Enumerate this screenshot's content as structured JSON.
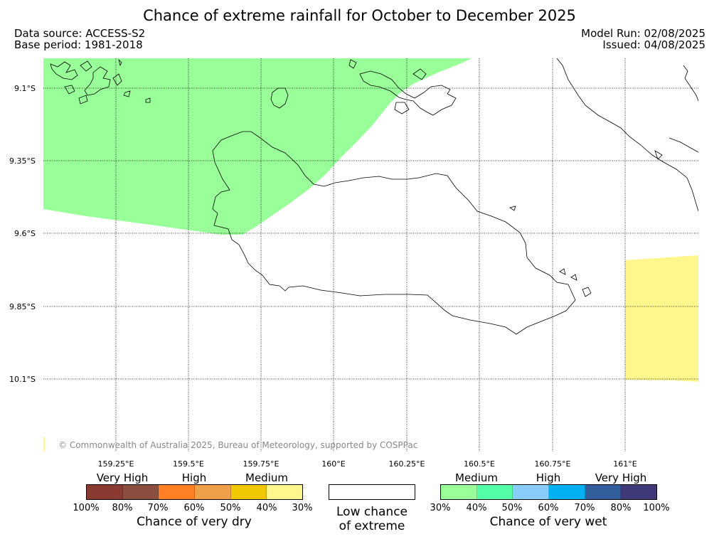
{
  "header": {
    "title": "Chance of extreme rainfall for October to December 2025",
    "data_source": "Data source: ACCESS-S2",
    "base_period": "Base period: 1981-2018",
    "model_run": "Model Run: 02/08/2025",
    "issued": "Issued: 04/08/2025"
  },
  "map": {
    "lat_labels": [
      "9.1°S",
      "9.35°S",
      "9.6°S",
      "9.85°S",
      "10.1°S"
    ],
    "lon_labels": [
      "159.25°E",
      "159.5°E",
      "159.75°E",
      "160°E",
      "160.25°E",
      "160.5°E",
      "160.75°E",
      "161°E"
    ],
    "land_stroke": "#000000",
    "gridline_color": "#000000",
    "regions": [
      {
        "category": "Medium chance of very wet",
        "color": "#99ff99"
      },
      {
        "category": "Medium chance of very dry",
        "color": "#fff68c"
      }
    ],
    "copyright": "© Commonwealth of Australia 2025, Bureau of Meteorology, supported by COSPPac"
  },
  "legend": {
    "dry": {
      "categories": [
        "Very High",
        "High",
        "Medium"
      ],
      "colors": [
        "#8b3a32",
        "#8b4f3f",
        "#ff7f26",
        "#f0a048",
        "#f0c800",
        "#fff68c"
      ],
      "ticks": [
        "100%",
        "80%",
        "70%",
        "60%",
        "50%",
        "40%",
        "30%"
      ],
      "title": "Chance of very dry"
    },
    "low": {
      "line1": "Low chance",
      "line2": "of extreme",
      "color": "#ffffff"
    },
    "wet": {
      "categories": [
        "Medium",
        "High",
        "Very High"
      ],
      "colors": [
        "#99ff99",
        "#55ffaa",
        "#87cefa",
        "#00b0f0",
        "#335e9c",
        "#3f3a77"
      ],
      "ticks": [
        "30%",
        "40%",
        "50%",
        "60%",
        "70%",
        "80%",
        "100%"
      ],
      "title": "Chance of very wet"
    }
  }
}
